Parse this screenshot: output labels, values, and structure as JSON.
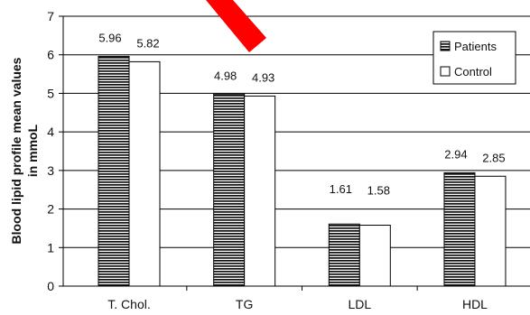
{
  "chart_data": {
    "type": "bar",
    "categories": [
      "T. Chol.",
      "TG",
      "LDL",
      "HDL"
    ],
    "series": [
      {
        "name": "Patients",
        "values": [
          5.96,
          4.98,
          1.61,
          2.94
        ],
        "labels": [
          "5.96",
          "4.98",
          "1.61",
          "2.94"
        ],
        "pattern": "horizontal-stripes"
      },
      {
        "name": "Control",
        "values": [
          5.82,
          4.93,
          1.58,
          2.85
        ],
        "labels": [
          "5.82",
          "4.93",
          "1.58",
          "2.85"
        ],
        "pattern": "solid-white"
      }
    ],
    "title": "",
    "xlabel": "",
    "ylabel_lines": [
      "Blood lipid profile mean values",
      "in mmoL"
    ],
    "ylim": [
      0,
      7
    ],
    "yticks": [
      "0",
      "1",
      "2",
      "3",
      "4",
      "5",
      "6",
      "7"
    ],
    "grid": true,
    "legend_position": "top-right"
  },
  "colors": {
    "bar_stripe": "#111111",
    "bar_fill": "#ffffff",
    "axis": "#000000",
    "gridline": "#000000",
    "annotation_arrow": "#ff0000"
  }
}
